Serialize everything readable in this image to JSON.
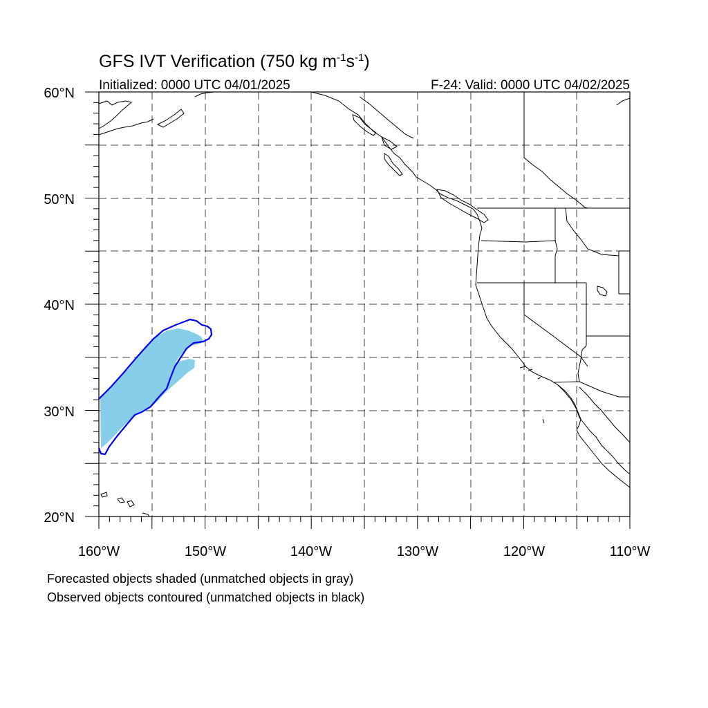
{
  "title": {
    "main": "GFS IVT Verification (750 kg m",
    "sup1": "-1",
    "mid": "s",
    "sup2": "-1",
    "end": ")"
  },
  "subtitle_left": "Initialized: 0000 UTC 04/01/2025",
  "subtitle_right": "F-24: Valid: 0000 UTC 04/02/2025",
  "lat_labels": [
    "60°N",
    "50°N",
    "40°N",
    "30°N",
    "20°N"
  ],
  "lon_labels": [
    "160°W",
    "150°W",
    "140°W",
    "130°W",
    "120°W",
    "110°W"
  ],
  "footnotes": [
    "Forecasted objects shaded (unmatched objects in gray)",
    "Observed objects contoured (unmatched objects in black)"
  ],
  "colors": {
    "forecast_fill": "#87ceeb",
    "observed_contour": "#0000ee",
    "map_lines": "#000000"
  },
  "map_extent": {
    "lon": [
      -160,
      -110
    ],
    "lat": [
      20,
      60
    ]
  }
}
